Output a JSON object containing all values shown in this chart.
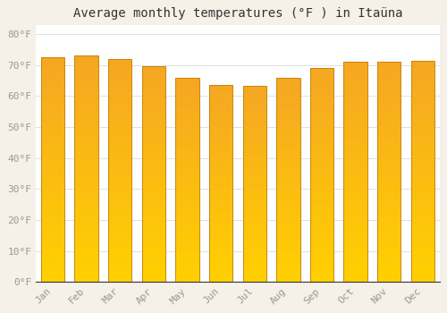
{
  "title": "Average monthly temperatures (°F ) in Itaüna",
  "months": [
    "Jan",
    "Feb",
    "Mar",
    "Apr",
    "May",
    "Jun",
    "Jul",
    "Aug",
    "Sep",
    "Oct",
    "Nov",
    "Dec"
  ],
  "values": [
    72.5,
    73.0,
    72.0,
    69.5,
    65.8,
    63.5,
    63.2,
    65.8,
    69.0,
    71.0,
    71.0,
    71.5
  ],
  "bar_color_top": "#F5A623",
  "bar_color_bottom": "#FFD000",
  "bar_edge_color": "#C8860A",
  "background_color": "#FFFFFF",
  "plot_bg_color": "#FFFFFF",
  "fig_bg_color": "#F5F0E8",
  "grid_color": "#E0E0E0",
  "ytick_labels": [
    "0°F",
    "10°F",
    "20°F",
    "30°F",
    "40°F",
    "50°F",
    "60°F",
    "70°F",
    "80°F"
  ],
  "ytick_values": [
    0,
    10,
    20,
    30,
    40,
    50,
    60,
    70,
    80
  ],
  "ylim": [
    0,
    83
  ],
  "title_fontsize": 10,
  "tick_fontsize": 8,
  "bar_width": 0.7
}
